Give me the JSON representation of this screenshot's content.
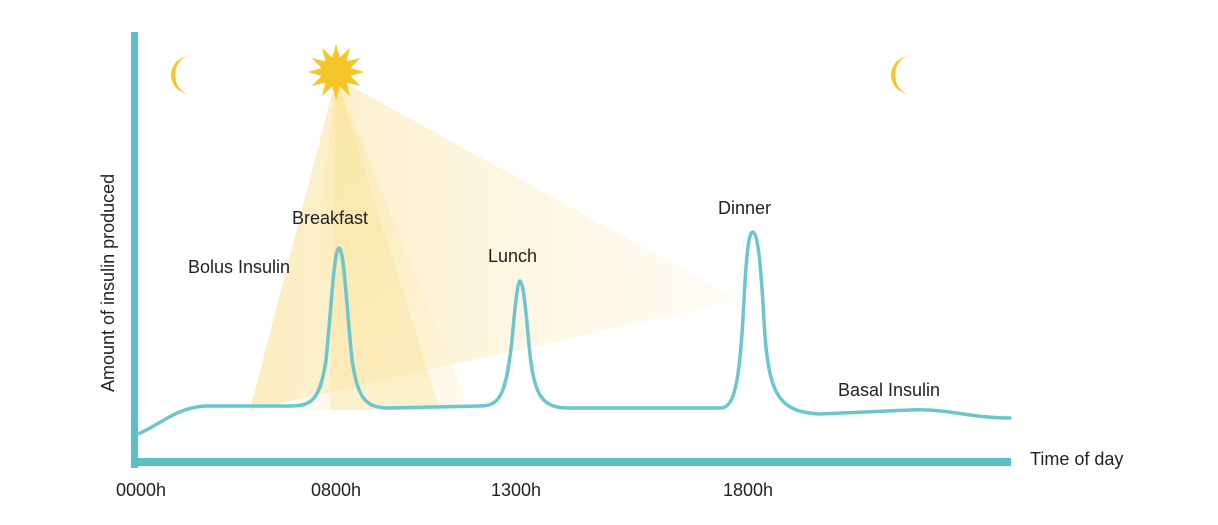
{
  "diagram": {
    "y_axis_label": "Amount of insulin produced",
    "x_axis_label": "Time of day",
    "tick_labels": [
      "0000h",
      "0800h",
      "1300h",
      "1800h"
    ],
    "annotations": {
      "bolus": "Bolus Insulin",
      "breakfast": "Breakfast",
      "lunch": "Lunch",
      "dinner": "Dinner",
      "basal": "Basal Insulin"
    },
    "icons": [
      "moon-icon",
      "sun-icon",
      "moon-icon"
    ],
    "colors": {
      "axis": "#5bbfc7",
      "curve": "#6cc6cc",
      "sun": "#f5c628",
      "moon": "#f5c628",
      "light_beam": "#fbeab5"
    }
  }
}
